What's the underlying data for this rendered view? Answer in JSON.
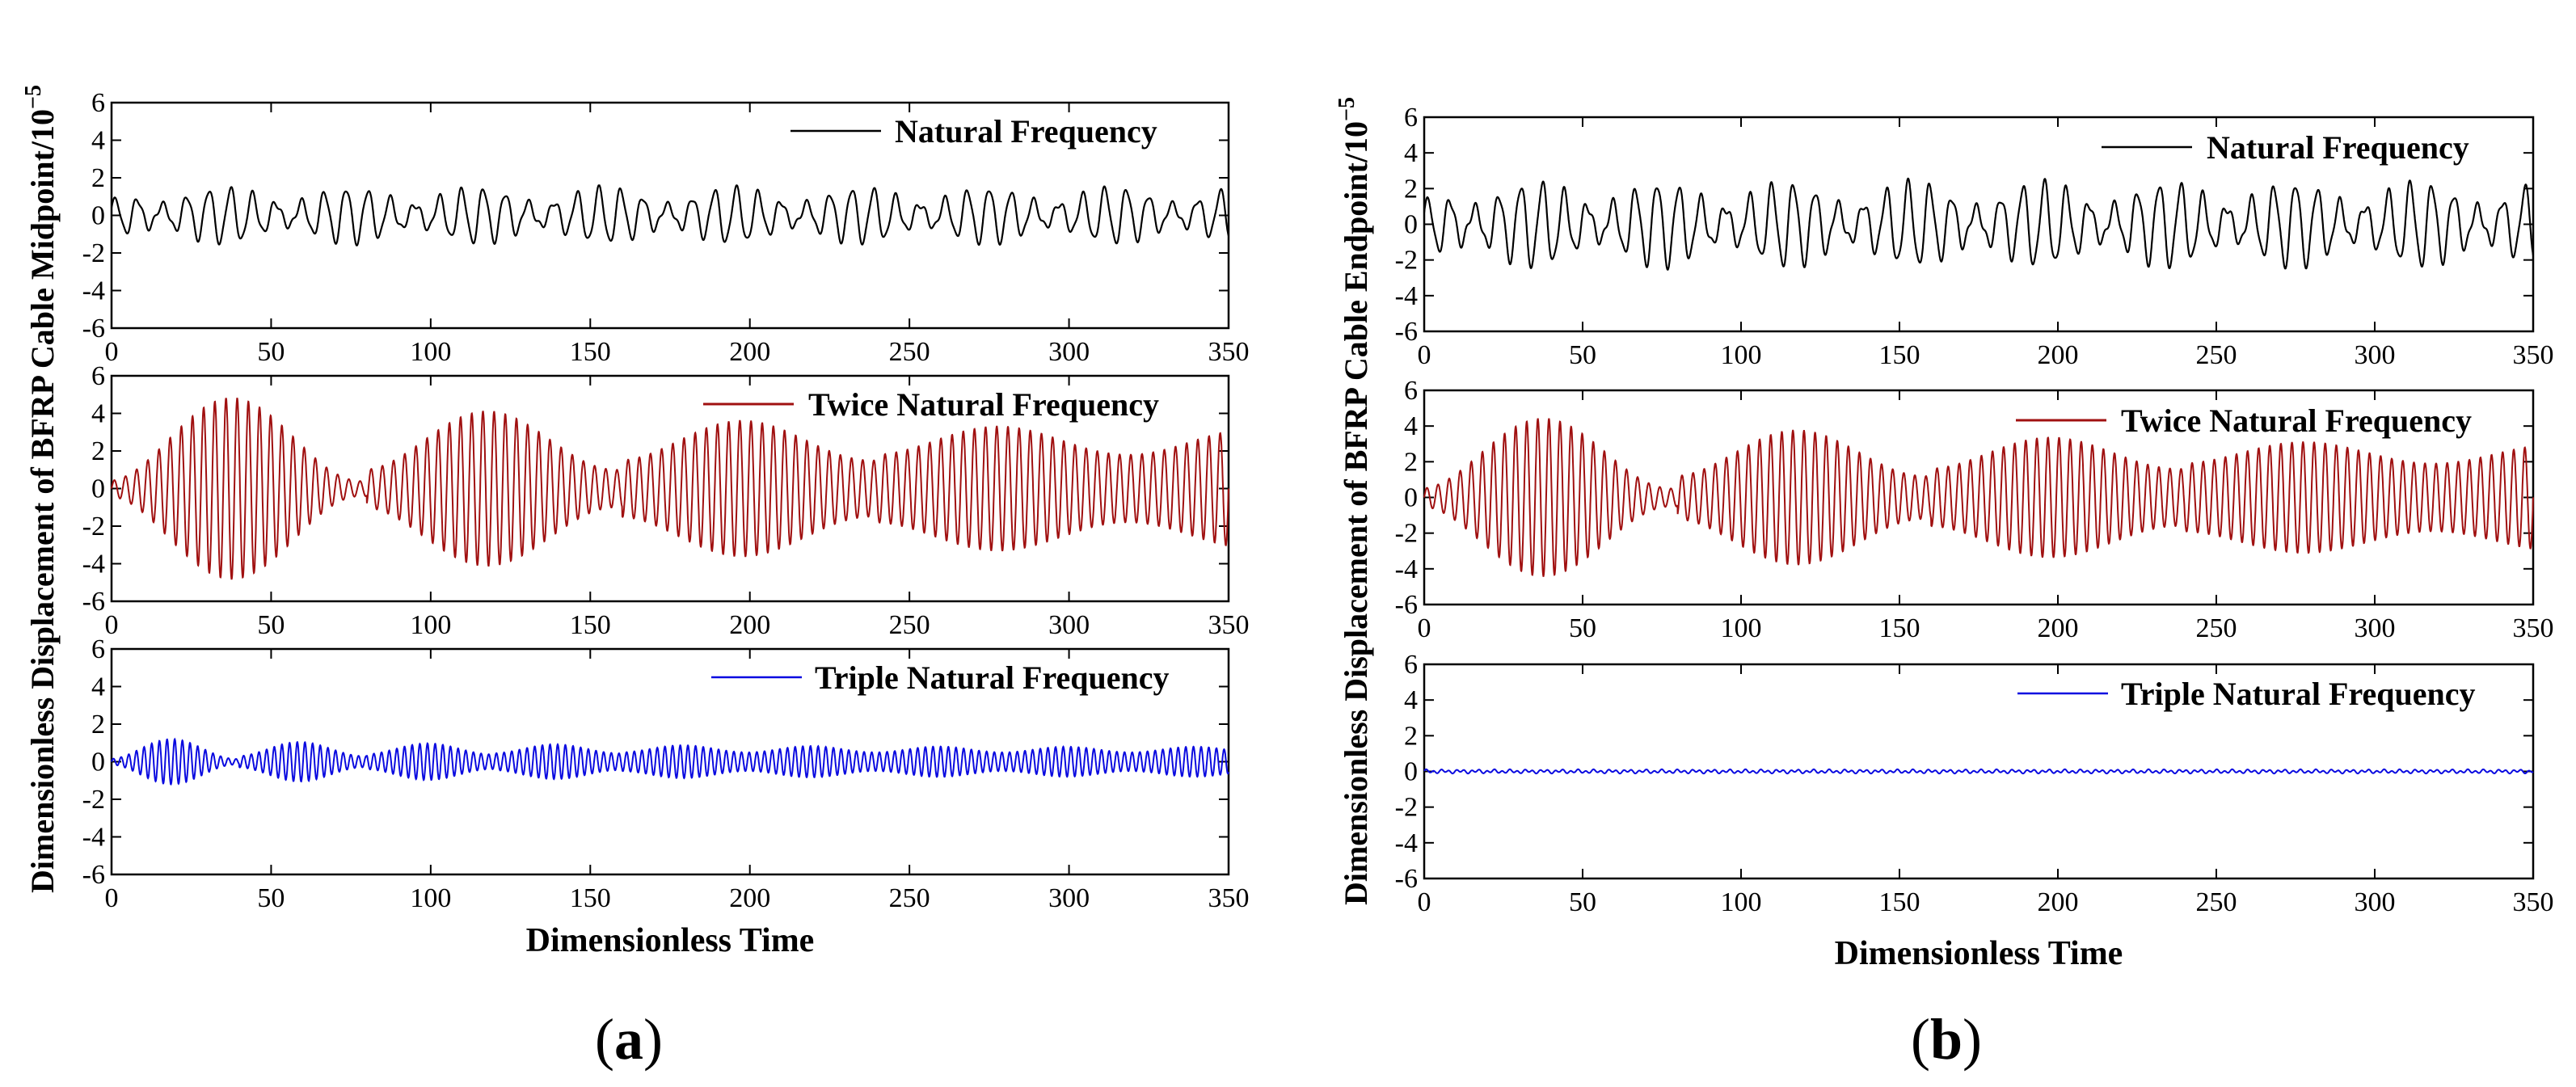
{
  "figure": {
    "panel_a": {
      "label_open": "(",
      "label_letter": "a",
      "label_close": ")"
    },
    "panel_b": {
      "label_open": "(",
      "label_letter": "b",
      "label_close": ")"
    }
  },
  "chart_data": [
    {
      "id": "a",
      "type": "line",
      "ylabel": "Dimensionless Displacement of BFRP Cable Midpoint/10",
      "ylabel_exp": "−5",
      "xlabel": "Dimensionless Time",
      "xlim": [
        0,
        350
      ],
      "x_ticks": [
        "0",
        "50",
        "100",
        "150",
        "200",
        "250",
        "300",
        "350"
      ],
      "subplots": [
        {
          "legend": "Natural Frequency",
          "color": "#000000",
          "ylim": [
            -6,
            6
          ],
          "y_ticks": [
            "-6",
            "-4",
            "-2",
            "0",
            "2",
            "4",
            "6"
          ],
          "signal": {
            "kind": "quasi",
            "period": 7.2,
            "amplitude": 1.0,
            "secondary_period": 6.1,
            "secondary_amplitude": 0.45,
            "peak_range": [
              -1.6,
              1.6
            ]
          }
        },
        {
          "legend": "Twice Natural Frequency",
          "color": "#a01010",
          "ylim": [
            -6,
            6
          ],
          "y_ticks": [
            "-6",
            "-4",
            "-2",
            "0",
            "2",
            "4",
            "6"
          ],
          "signal": {
            "kind": "beat",
            "period": 3.5,
            "beat_period": 80,
            "envelope_peaks": [
              5.2,
              4.4,
              3.8,
              3.4,
              3.2
            ],
            "envelope_min": [
              0.4,
              1.0,
              1.5,
              1.8
            ]
          }
        },
        {
          "legend": "Triple Natural Frequency",
          "color": "#0a0ae0",
          "ylim": [
            -6,
            6
          ],
          "y_ticks": [
            "-6",
            "-4",
            "-2",
            "0",
            "2",
            "4",
            "6"
          ],
          "signal": {
            "kind": "beat",
            "period": 2.4,
            "beat_period": 40,
            "envelope_peaks": [
              1.3,
              1.1,
              1.0,
              0.95,
              0.9,
              0.85,
              0.82,
              0.8,
              0.8
            ],
            "envelope_min": [
              0.15,
              0.3,
              0.4,
              0.45,
              0.5
            ]
          }
        }
      ]
    },
    {
      "id": "b",
      "type": "line",
      "ylabel": "Dimensionless Displacement of BFRP Cable Endpoint/10",
      "ylabel_exp": "−5",
      "xlabel": "Dimensionless Time",
      "xlim": [
        0,
        350
      ],
      "x_ticks": [
        "0",
        "50",
        "100",
        "150",
        "200",
        "250",
        "300",
        "350"
      ],
      "subplots": [
        {
          "legend": "Natural Frequency",
          "color": "#000000",
          "ylim": [
            -6,
            6
          ],
          "y_ticks": [
            "-6",
            "-4",
            "-2",
            "0",
            "2",
            "4",
            "6"
          ],
          "signal": {
            "kind": "quasi",
            "period": 7.2,
            "amplitude": 1.6,
            "secondary_period": 6.1,
            "secondary_amplitude": 0.7,
            "peak_range": [
              -2.8,
              2.6
            ]
          }
        },
        {
          "legend": "Twice Natural Frequency",
          "color": "#a01010",
          "ylim": [
            -6,
            6
          ],
          "y_ticks": [
            "-6",
            "-4",
            "-2",
            "0",
            "2",
            "4",
            "6"
          ],
          "signal": {
            "kind": "beat",
            "period": 3.5,
            "beat_period": 80,
            "envelope_peaks": [
              4.8,
              4.0,
              3.5,
              3.2,
              3.0
            ],
            "envelope_min": [
              0.5,
              1.2,
              1.6,
              1.9
            ]
          }
        },
        {
          "legend": "Triple Natural Frequency",
          "color": "#0a0ae0",
          "ylim": [
            -6,
            6
          ],
          "y_ticks": [
            "-6",
            "-4",
            "-2",
            "0",
            "2",
            "4",
            "6"
          ],
          "signal": {
            "kind": "noise",
            "period": 2.4,
            "amplitude": 0.12
          }
        }
      ]
    }
  ]
}
